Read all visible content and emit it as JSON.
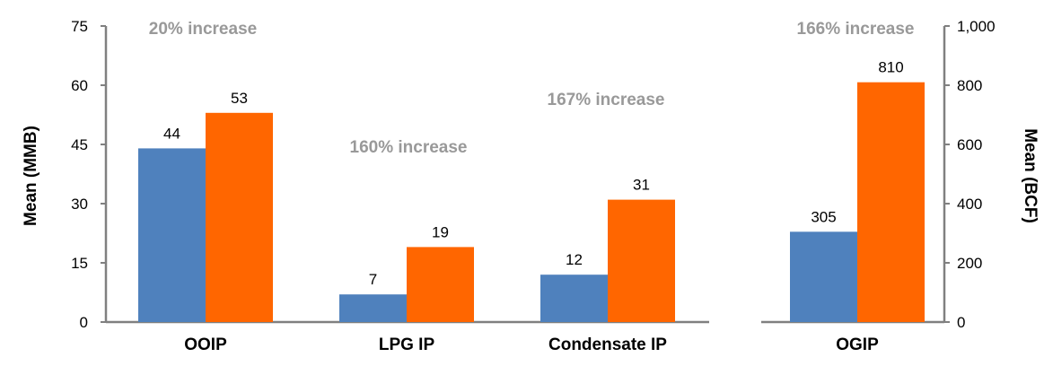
{
  "colors": {
    "series_a": "#4f81bd",
    "series_b": "#ff6600",
    "axis": "#808080",
    "annotation": "#999999",
    "text": "#000000"
  },
  "chart_data": [
    {
      "type": "bar",
      "ylabel": "Mean  (MMB)",
      "ylim": [
        0,
        75
      ],
      "yticks": [
        "0",
        "15",
        "30",
        "45",
        "60",
        "75"
      ],
      "categories": [
        "OOIP",
        "LPG IP",
        "Condensate IP"
      ],
      "series": [
        {
          "values": [
            44,
            7,
            12
          ]
        },
        {
          "values": [
            53,
            19,
            31
          ]
        }
      ],
      "annotations": [
        "20% increase",
        "160% increase",
        "167% increase"
      ],
      "grid": false,
      "legend": "none"
    },
    {
      "type": "bar",
      "ylabel": "Mean  (BCF)",
      "ylim": [
        0,
        1000
      ],
      "yticks": [
        "0",
        "200",
        "400",
        "600",
        "800",
        "1,000"
      ],
      "axis_side": "right",
      "categories": [
        "OGIP"
      ],
      "series": [
        {
          "values": [
            305
          ]
        },
        {
          "values": [
            810
          ]
        }
      ],
      "annotations": [
        "166% increase"
      ],
      "grid": false,
      "legend": "none"
    }
  ]
}
